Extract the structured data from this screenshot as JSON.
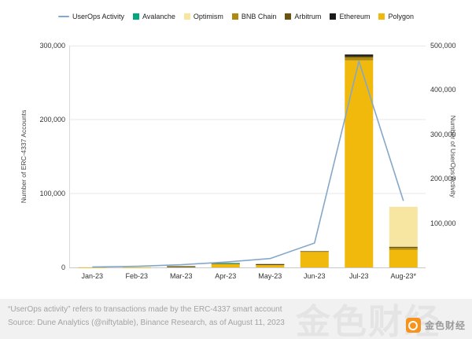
{
  "legend": [
    {
      "label": "UserOps Activity",
      "color": "#85A8C9",
      "type": "line"
    },
    {
      "label": "Avalanche",
      "color": "#00A77F",
      "type": "square"
    },
    {
      "label": "Optimism",
      "color": "#F6E6A2",
      "type": "square"
    },
    {
      "label": "BNB Chain",
      "color": "#AD8B10",
      "type": "square"
    },
    {
      "label": "Arbitrum",
      "color": "#6B5412",
      "type": "square"
    },
    {
      "label": "Ethereum",
      "color": "#1A1A1A",
      "type": "square"
    },
    {
      "label": "Polygon",
      "color": "#F0B90B",
      "type": "square"
    }
  ],
  "chart_data": {
    "type": "bar",
    "subtype": "stacked-bar-with-line",
    "categories": [
      "Jan-23",
      "Feb-23",
      "Mar-23",
      "Apr-23",
      "May-23",
      "Jun-23",
      "Jul-23",
      "Aug-23*"
    ],
    "bar_series": [
      {
        "name": "Polygon",
        "color": "#F0B90B",
        "values": [
          200,
          300,
          1200,
          4500,
          4000,
          21000,
          280000,
          24000
        ]
      },
      {
        "name": "BNB Chain",
        "color": "#AD8B10",
        "values": [
          0,
          0,
          200,
          700,
          300,
          800,
          4000,
          2500
        ]
      },
      {
        "name": "Arbitrum",
        "color": "#6B5412",
        "values": [
          0,
          0,
          50,
          300,
          100,
          200,
          1500,
          1500
        ]
      },
      {
        "name": "Ethereum",
        "color": "#1A1A1A",
        "values": [
          0,
          0,
          50,
          200,
          100,
          0,
          2500,
          0
        ]
      },
      {
        "name": "Optimism",
        "color": "#F6E6A2",
        "values": [
          0,
          0,
          0,
          300,
          0,
          0,
          0,
          54000
        ]
      },
      {
        "name": "Avalanche",
        "color": "#00A77F",
        "values": [
          0,
          0,
          0,
          100,
          0,
          0,
          0,
          0
        ]
      }
    ],
    "line_series": {
      "name": "UserOps Activity",
      "color": "#85A8C9",
      "axis": "right",
      "values": [
        1000,
        2500,
        6000,
        12000,
        20000,
        55000,
        465000,
        150000
      ]
    },
    "left_axis": {
      "title": "Number of ERC-4337 Accounts",
      "min": 0,
      "max": 300000,
      "ticks": [
        0,
        100000,
        200000,
        300000
      ],
      "tick_labels": [
        "0",
        "100,000",
        "200,000",
        "300,000"
      ]
    },
    "right_axis": {
      "title": "Number of UserOps Activity",
      "min": 0,
      "max": 500000,
      "ticks": [
        100000,
        200000,
        300000,
        400000,
        500000
      ],
      "tick_labels": [
        "100,000",
        "200,000",
        "300,000",
        "400,000",
        "500,000"
      ]
    },
    "grid": true,
    "legend_position": "top"
  },
  "footer": {
    "line1": "“UserOps activity” refers to transactions made by the ERC-4337 smart account",
    "line2": "Source: Dune Analytics (@niftytable), Binance Research, as of August 11, 2023"
  },
  "watermark": {
    "text": "金色财经",
    "logo_color": "#F7941D"
  }
}
